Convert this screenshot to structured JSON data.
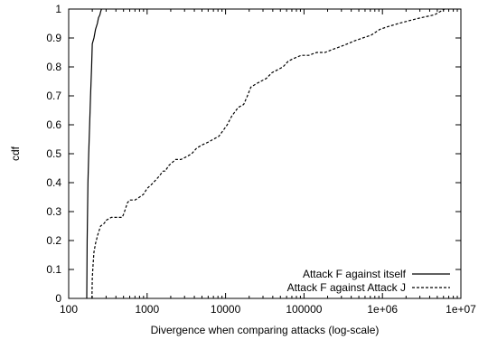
{
  "chart_data": {
    "type": "line",
    "xlabel": "Divergence when comparing attacks (log-scale)",
    "ylabel": "cdf",
    "x_scale": "log",
    "xlim": [
      100,
      10000000
    ],
    "ylim": [
      0,
      1
    ],
    "x_ticks": [
      100,
      1000,
      10000,
      100000,
      1000000,
      10000000
    ],
    "x_tick_labels": [
      "100",
      "1000",
      "10000",
      "100000",
      "1e+06",
      "1e+07"
    ],
    "y_ticks": [
      0,
      0.1,
      0.2,
      0.3,
      0.4,
      0.5,
      0.6,
      0.7,
      0.8,
      0.9,
      1
    ],
    "y_tick_labels": [
      "0",
      "0.1",
      "0.2",
      "0.3",
      "0.4",
      "0.5",
      "0.6",
      "0.7",
      "0.8",
      "0.9",
      "1"
    ],
    "grid": false,
    "legend_position": "bottom-right",
    "series": [
      {
        "name": "Attack F against itself",
        "style": "solid",
        "color": "#000000",
        "x": [
          170,
          171,
          172,
          174,
          176,
          180,
          185,
          190,
          196,
          200,
          210,
          220,
          232,
          240,
          250,
          255,
          262
        ],
        "y": [
          0,
          0.1,
          0.2,
          0.3,
          0.4,
          0.5,
          0.6,
          0.7,
          0.8,
          0.88,
          0.9,
          0.93,
          0.95,
          0.97,
          0.98,
          0.99,
          1.0
        ]
      },
      {
        "name": "Attack F against Attack J",
        "style": "dashed",
        "color": "#000000",
        "x": [
          198,
          200,
          205,
          210,
          220,
          235,
          255,
          285,
          300,
          350,
          420,
          480,
          500,
          530,
          560,
          600,
          700,
          800,
          900,
          1000,
          1100,
          1200,
          1400,
          1600,
          1700,
          1900,
          2100,
          2300,
          2700,
          3200,
          3700,
          4300,
          5000,
          6000,
          7000,
          8200,
          9300,
          10500,
          12000,
          14500,
          17000,
          19000,
          21000,
          24000,
          28000,
          33000,
          39000,
          46000,
          54000,
          63000,
          75000,
          92000,
          115000,
          145000,
          185000,
          230000,
          290000,
          360000,
          440000,
          560000,
          720000,
          930000,
          1200000,
          1600000,
          2200000,
          3100000,
          4600000,
          6200000
        ],
        "y": [
          0,
          0.07,
          0.12,
          0.16,
          0.19,
          0.22,
          0.25,
          0.26,
          0.27,
          0.28,
          0.28,
          0.28,
          0.29,
          0.31,
          0.33,
          0.34,
          0.34,
          0.35,
          0.36,
          0.38,
          0.39,
          0.4,
          0.42,
          0.44,
          0.44,
          0.46,
          0.47,
          0.48,
          0.48,
          0.49,
          0.5,
          0.52,
          0.53,
          0.54,
          0.55,
          0.56,
          0.58,
          0.6,
          0.63,
          0.66,
          0.67,
          0.7,
          0.73,
          0.74,
          0.75,
          0.76,
          0.78,
          0.79,
          0.8,
          0.82,
          0.83,
          0.84,
          0.84,
          0.85,
          0.85,
          0.86,
          0.87,
          0.88,
          0.89,
          0.9,
          0.91,
          0.93,
          0.94,
          0.95,
          0.96,
          0.97,
          0.98,
          1.0
        ]
      }
    ]
  }
}
